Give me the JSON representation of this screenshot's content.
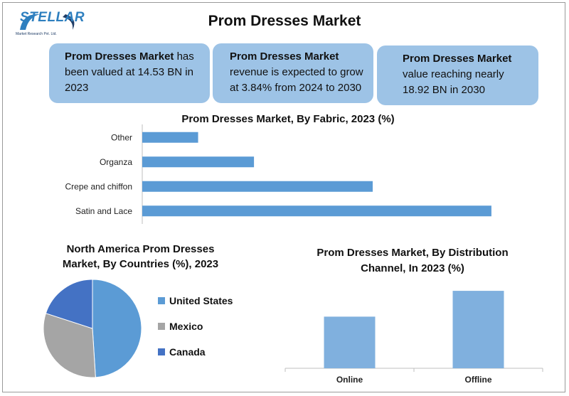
{
  "header": {
    "title": "Prom Dresses Market",
    "logo_text": "STELLAR",
    "logo_sub": "Market Research Pvt. Ltd."
  },
  "info_boxes": [
    {
      "bold": "Prom Dresses Market",
      "text": " has been valued at 14.53 BN in 2023"
    },
    {
      "bold": "Prom Dresses Market",
      "text": " revenue is expected to grow at 3.84% from 2024 to 2030"
    },
    {
      "bold": "Prom Dresses Market",
      "text": " value reaching nearly 18.92 BN in 2030"
    }
  ],
  "colors": {
    "box": "#9dc3e6",
    "bar": "#5b9bd5",
    "pie_us": "#5b9bd5",
    "pie_mexico": "#a5a5a5",
    "pie_canada": "#4472c4",
    "bar2": "#80b0de"
  },
  "chart_data": [
    {
      "type": "bar",
      "orientation": "horizontal",
      "title": "Prom Dresses Market, By Fabric, 2023 (%)",
      "categories": [
        "Other",
        "Organza",
        "Crepe and chiffon",
        "Satin and Lace"
      ],
      "values": [
        8,
        16,
        33,
        50
      ],
      "xlim": [
        0,
        55
      ],
      "grid": false
    },
    {
      "type": "pie",
      "title": "North America Prom Dresses Market, By Countries (%), 2023",
      "labels": [
        "United States",
        "Mexico",
        "Canada"
      ],
      "values": [
        49,
        31,
        20
      ],
      "legend": "right"
    },
    {
      "type": "bar",
      "title": "Prom Dresses Market, By Distribution Channel, In 2023 (%)",
      "categories": [
        "Online",
        "Offline"
      ],
      "values": [
        40,
        60
      ],
      "ylim": [
        0,
        65
      ],
      "grid": false
    }
  ]
}
